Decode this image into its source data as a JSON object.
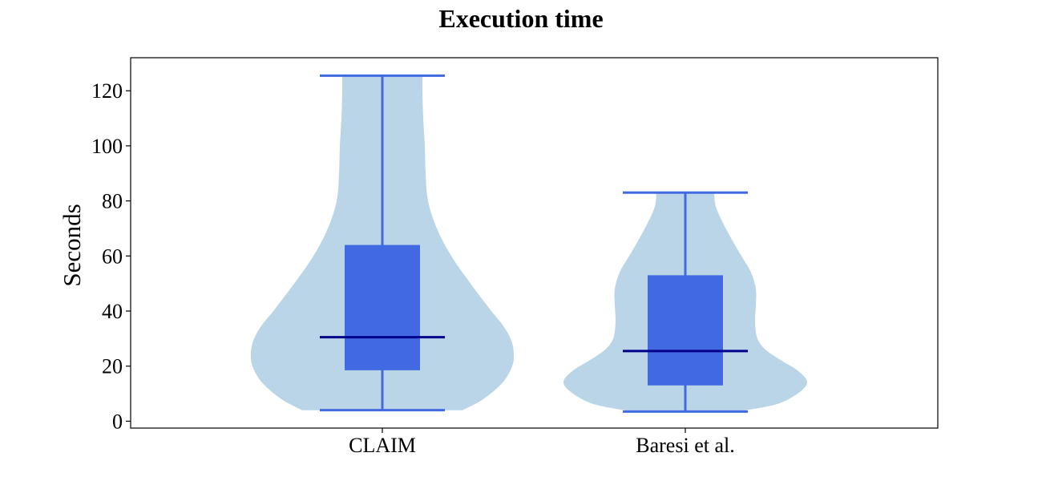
{
  "chart_data": {
    "type": "violin",
    "title": "Execution time",
    "xlabel": "",
    "ylabel": "Seconds",
    "ylim": [
      -2.5,
      132
    ],
    "yticks": [
      0,
      20,
      40,
      60,
      80,
      100,
      120
    ],
    "grid": false,
    "categories": [
      "CLAIM",
      "Baresi et al."
    ],
    "series": [
      {
        "category": "CLAIM",
        "min": 4,
        "q1": 18.5,
        "median": 30.5,
        "q3": 64,
        "max": 125.5,
        "density": [
          [
            4,
            1.0
          ],
          [
            8,
            1.26
          ],
          [
            14,
            1.5
          ],
          [
            20,
            1.62
          ],
          [
            25,
            1.64
          ],
          [
            30,
            1.6
          ],
          [
            35,
            1.5
          ],
          [
            40,
            1.36
          ],
          [
            50,
            1.1
          ],
          [
            60,
            0.86
          ],
          [
            70,
            0.68
          ],
          [
            80,
            0.57
          ],
          [
            90,
            0.54
          ],
          [
            100,
            0.53
          ],
          [
            110,
            0.51
          ],
          [
            120,
            0.5
          ],
          [
            125.5,
            0.5
          ]
        ]
      },
      {
        "category": "Baresi et al.",
        "min": 3.5,
        "q1": 13,
        "median": 25.5,
        "q3": 53,
        "max": 83,
        "density": [
          [
            3.5,
            0.64
          ],
          [
            6,
            1.12
          ],
          [
            10,
            1.4
          ],
          [
            14,
            1.52
          ],
          [
            18,
            1.42
          ],
          [
            22,
            1.2
          ],
          [
            26,
            1.0
          ],
          [
            30,
            0.9
          ],
          [
            36,
            0.87
          ],
          [
            42,
            0.88
          ],
          [
            48,
            0.88
          ],
          [
            54,
            0.82
          ],
          [
            60,
            0.7
          ],
          [
            66,
            0.58
          ],
          [
            72,
            0.47
          ],
          [
            78,
            0.38
          ],
          [
            83,
            0.36
          ]
        ]
      }
    ],
    "colors": {
      "violin_fill": "#bad5e8",
      "box_fill": "#4169e1",
      "whisker": "#4169e1",
      "median": "#00008b"
    }
  }
}
